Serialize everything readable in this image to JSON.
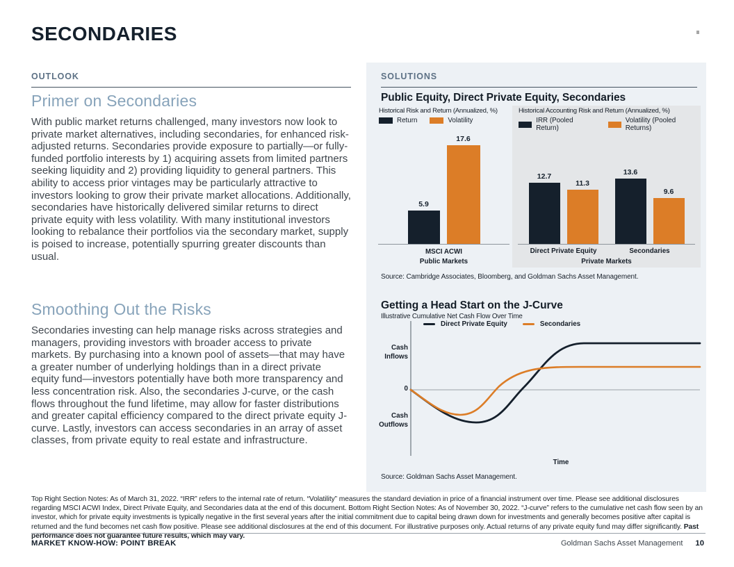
{
  "colors": {
    "navy": "#15202C",
    "orange": "#DC7D27",
    "heading_blue": "#87A3BA",
    "panel_bg": "#EDF1F5",
    "chart2_bg": "#E4E6E8"
  },
  "page": {
    "title": "SECONDARIES",
    "footnote": {
      "text": "Top Right Section Notes: As of March 31, 2022. “IRR” refers to the internal rate of return. “Volatility” measures the standard deviation in price of a financial instrument over time. Please see additional disclosures regarding MSCI ACWI Index, Direct Private Equity, and Secondaries data at the end of this document. Bottom Right Section Notes: As of November 30, 2022. “J-curve” refers to the cumulative net cash flow seen by an investor, which for private equity investments is typically negative in the first several years after the initial commitment due to capital being drawn down for investments and generally becomes positive after capital is returned and the fund becomes net cash flow positive. Please see additional disclosures at the end of this document. For illustrative purposes only. Actual returns of any private equity fund may differ significantly. ",
      "bold_tail": "Past performance does not guarantee future results, which may vary."
    },
    "footer": {
      "left": "MARKET KNOW-HOW: POINT BREAK",
      "brand": "Goldman Sachs Asset Management",
      "page_number": "10"
    }
  },
  "outlook": {
    "label": "OUTLOOK",
    "sections": [
      {
        "heading": "Primer on Secondaries",
        "body": "With public market returns challenged, many investors now look to private market alternatives, including secondaries, for enhanced risk-adjusted returns. Secondaries provide exposure to partially—or fully-funded portfolio interests by 1) acquiring assets from limited partners seeking liquidity and 2) providing liquidity to general partners. This ability to access prior vintages may be particularly attractive to investors looking to grow their private market allocations. Additionally, secondaries have historically delivered similar returns to direct private equity with less volatility. With many institutional investors looking to rebalance their portfolios via the secondary market, supply is poised to increase, potentially spurring greater discounts than usual."
      },
      {
        "heading": "Smoothing Out the Risks",
        "body": "Secondaries investing can help manage risks across strategies and managers, providing investors with broader access to private markets. By purchasing into a known pool of assets—that may have a greater number of underlying holdings than in a direct private equity fund—investors potentially have both more transparency and less concentration risk. Also, the secondaries J-curve, or the cash flows throughout the fund lifetime, may allow for faster distributions and greater capital efficiency compared to the direct private equity J-curve. Lastly, investors can access secondaries in an array of asset classes, from private equity to real estate and infrastructure."
      }
    ]
  },
  "solutions": {
    "label": "SOLUTIONS"
  },
  "chart_data": [
    {
      "type": "bar",
      "title": "Public Equity, Direct Private Equity, Secondaries",
      "subtitle": "Historical Risk and Return (Annualized, %)",
      "legend": [
        "Return",
        "Volatility"
      ],
      "categories": [
        "MSCI ACWI"
      ],
      "axis_group_label": "Public Markets",
      "series": [
        {
          "name": "Return",
          "values": [
            5.9
          ]
        },
        {
          "name": "Volatility",
          "values": [
            17.6
          ]
        }
      ],
      "source": "Source: Cambridge Associates, Bloomberg, and Goldman Sachs Asset Management."
    },
    {
      "type": "bar",
      "subtitle": "Historical Accounting Risk and Return (Annualized, %)",
      "legend": [
        "IRR (Pooled Return)",
        "Volatility (Pooled Returns)"
      ],
      "categories": [
        "Direct Private Equity",
        "Secondaries"
      ],
      "axis_group_label": "Private Markets",
      "series": [
        {
          "name": "IRR (Pooled Return)",
          "values": [
            12.7,
            13.6
          ]
        },
        {
          "name": "Volatility (Pooled Returns)",
          "values": [
            11.3,
            9.6
          ]
        }
      ]
    },
    {
      "type": "line",
      "title": "Getting a Head Start on the J-Curve",
      "subtitle": "Illustrative Cumulative Net Cash Flow Over Time",
      "legend": [
        "Direct Private Equity",
        "Secondaries"
      ],
      "y_axis_labels": [
        "Cash Inflows",
        "0",
        "Cash Outflows"
      ],
      "xlabel": "Time",
      "source": "Source: Goldman Sachs Asset Management.",
      "series": [
        {
          "name": "Direct Private Equity",
          "shape": "Deeper J-curve: larger early negative cash flow trough, crosses zero later, plateaus at a higher cumulative net inflow."
        },
        {
          "name": "Secondaries",
          "shape": "Shallower J-curve: smaller early drawdown, crosses zero sooner, plateaus at a lower cumulative net inflow."
        }
      ]
    }
  ]
}
